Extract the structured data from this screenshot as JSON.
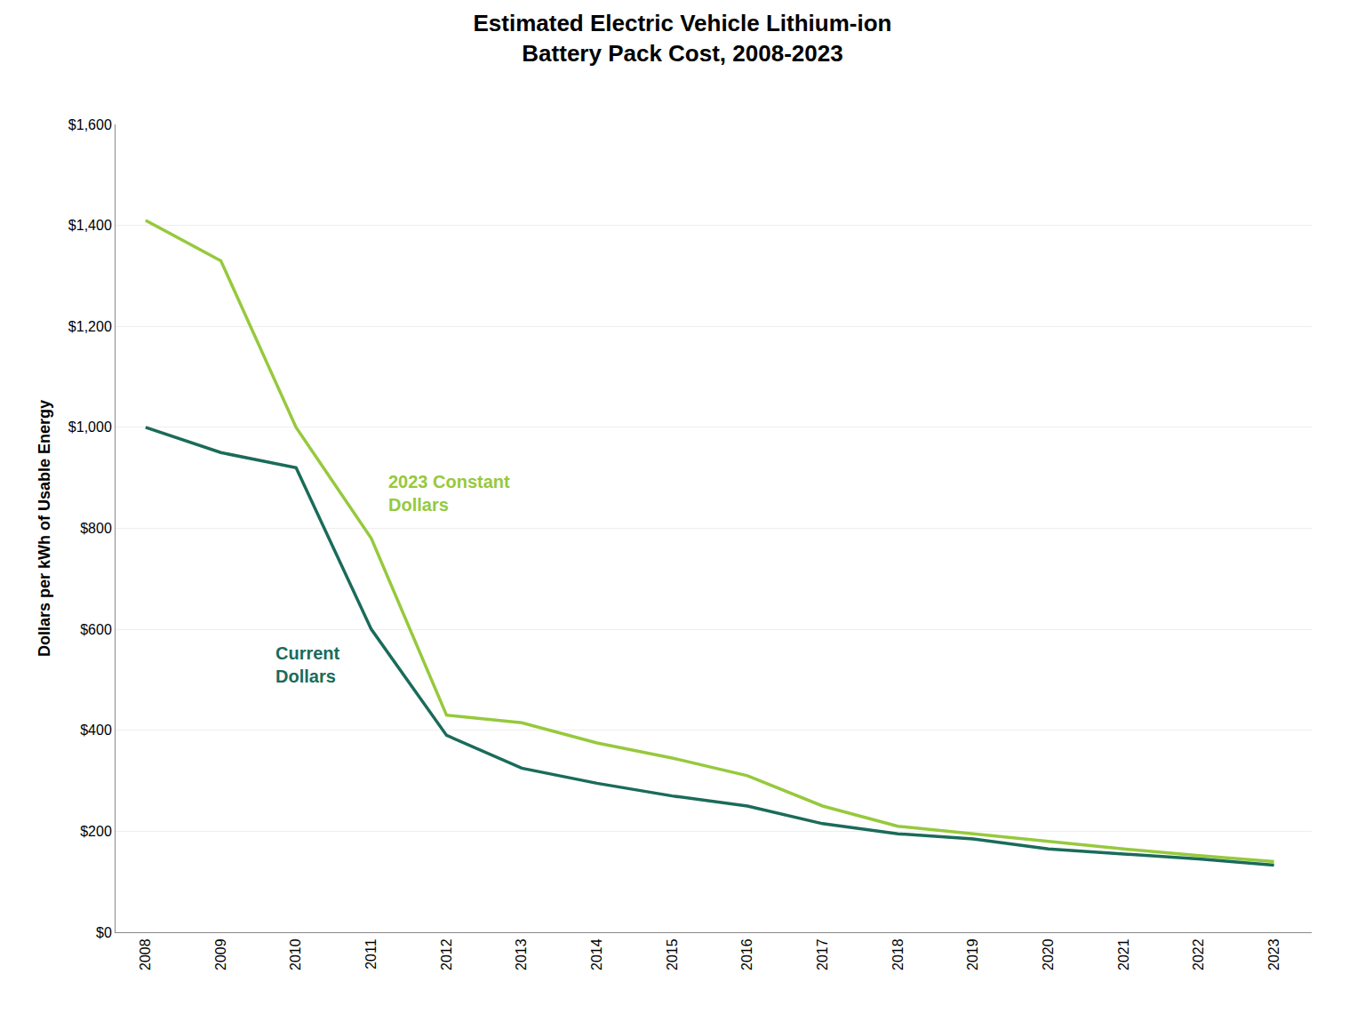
{
  "chart_data": {
    "type": "line",
    "title": "Estimated Electric Vehicle Lithium-ion\nBattery Pack Cost, 2008-2023",
    "y_label": "Dollars per kWh of Usable Energy",
    "x": [
      2008,
      2009,
      2010,
      2011,
      2012,
      2013,
      2014,
      2015,
      2016,
      2017,
      2018,
      2019,
      2020,
      2021,
      2022,
      2023
    ],
    "series": [
      {
        "name": "2023 Constant\nDollars",
        "color": "#96c93d",
        "values": [
          1410,
          1330,
          1000,
          780,
          430,
          415,
          375,
          345,
          310,
          250,
          210,
          195,
          180,
          165,
          152,
          140
        ]
      },
      {
        "name": "Current\nDollars",
        "color": "#1a6b5a",
        "values": [
          1000,
          950,
          920,
          600,
          390,
          325,
          295,
          270,
          250,
          215,
          195,
          185,
          165,
          155,
          145,
          133
        ]
      }
    ],
    "annotations": [
      {
        "text": "2023 Constant\nDollars",
        "x": 2011.2,
        "y": 870,
        "color": "#96c93d"
      },
      {
        "text": "Current\nDollars",
        "x": 2009.7,
        "y": 530,
        "color": "#1a6b5a"
      }
    ],
    "xlim": [
      2007.6,
      2023.5
    ],
    "xticks": [
      2008,
      2009,
      2010,
      2011,
      2012,
      2013,
      2014,
      2015,
      2016,
      2017,
      2018,
      2019,
      2020,
      2021,
      2022,
      2023
    ],
    "ylim": [
      0,
      1600
    ],
    "yticks": [
      {
        "value": 0,
        "label": "$0"
      },
      {
        "value": 200,
        "label": "$200"
      },
      {
        "value": 400,
        "label": "$400"
      },
      {
        "value": 600,
        "label": "$600"
      },
      {
        "value": 800,
        "label": "$800"
      },
      {
        "value": 1000,
        "label": "$1,000"
      },
      {
        "value": 1200,
        "label": "$1,200"
      },
      {
        "value": 1400,
        "label": "$1,400"
      },
      {
        "value": 1600,
        "label": "$1,600"
      }
    ],
    "grid": "y",
    "legend": false
  }
}
